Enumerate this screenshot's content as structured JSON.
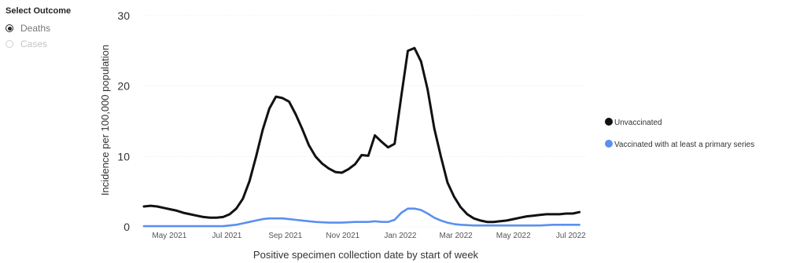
{
  "outcome_selector": {
    "title": "Select Outcome",
    "options": [
      {
        "label": "Deaths",
        "selected": true
      },
      {
        "label": "Cases",
        "selected": false
      }
    ]
  },
  "chart_data": {
    "type": "line",
    "title": "",
    "xlabel": "Positive specimen collection date by start of week",
    "ylabel": "Incidence per 100,000 population",
    "ylim": [
      0,
      30
    ],
    "yticks": [
      0,
      10,
      20,
      30
    ],
    "xlim": [
      "2021-04-04",
      "2022-07-17"
    ],
    "xticks": [
      {
        "date": "2021-05-01",
        "label": "May 2021"
      },
      {
        "date": "2021-07-01",
        "label": "Jul 2021"
      },
      {
        "date": "2021-09-01",
        "label": "Sep 2021"
      },
      {
        "date": "2021-11-01",
        "label": "Nov 2021"
      },
      {
        "date": "2022-01-01",
        "label": "Jan 2022"
      },
      {
        "date": "2022-03-01",
        "label": "Mar 2022"
      },
      {
        "date": "2022-05-01",
        "label": "May 2022"
      },
      {
        "date": "2022-07-01",
        "label": "Jul 2022"
      }
    ],
    "grid": "horizontal",
    "legend_position": "right",
    "series": [
      {
        "name": "Unvaccinated",
        "color": "#111111",
        "points": [
          [
            "2021-04-04",
            2.9
          ],
          [
            "2021-04-11",
            3.0
          ],
          [
            "2021-04-18",
            2.9
          ],
          [
            "2021-04-25",
            2.7
          ],
          [
            "2021-05-02",
            2.5
          ],
          [
            "2021-05-09",
            2.3
          ],
          [
            "2021-05-16",
            2.0
          ],
          [
            "2021-05-23",
            1.8
          ],
          [
            "2021-05-30",
            1.6
          ],
          [
            "2021-06-06",
            1.4
          ],
          [
            "2021-06-13",
            1.3
          ],
          [
            "2021-06-20",
            1.3
          ],
          [
            "2021-06-27",
            1.4
          ],
          [
            "2021-07-04",
            1.8
          ],
          [
            "2021-07-11",
            2.6
          ],
          [
            "2021-07-18",
            4.0
          ],
          [
            "2021-07-25",
            6.5
          ],
          [
            "2021-08-01",
            10.0
          ],
          [
            "2021-08-08",
            13.8
          ],
          [
            "2021-08-15",
            16.8
          ],
          [
            "2021-08-22",
            18.5
          ],
          [
            "2021-08-29",
            18.3
          ],
          [
            "2021-09-05",
            17.8
          ],
          [
            "2021-09-12",
            16.0
          ],
          [
            "2021-09-19",
            13.9
          ],
          [
            "2021-09-26",
            11.6
          ],
          [
            "2021-10-03",
            10.0
          ],
          [
            "2021-10-10",
            9.0
          ],
          [
            "2021-10-17",
            8.3
          ],
          [
            "2021-10-24",
            7.8
          ],
          [
            "2021-10-31",
            7.7
          ],
          [
            "2021-11-07",
            8.2
          ],
          [
            "2021-11-14",
            8.9
          ],
          [
            "2021-11-21",
            10.2
          ],
          [
            "2021-11-28",
            10.1
          ],
          [
            "2021-12-05",
            13.0
          ],
          [
            "2021-12-12",
            12.1
          ],
          [
            "2021-12-19",
            11.3
          ],
          [
            "2021-12-26",
            11.8
          ],
          [
            "2022-01-02",
            18.5
          ],
          [
            "2022-01-09",
            25.0
          ],
          [
            "2022-01-16",
            25.4
          ],
          [
            "2022-01-23",
            23.5
          ],
          [
            "2022-01-30",
            19.5
          ],
          [
            "2022-02-06",
            14.0
          ],
          [
            "2022-02-13",
            10.0
          ],
          [
            "2022-02-20",
            6.3
          ],
          [
            "2022-02-27",
            4.3
          ],
          [
            "2022-03-06",
            2.8
          ],
          [
            "2022-03-13",
            1.8
          ],
          [
            "2022-03-20",
            1.2
          ],
          [
            "2022-03-27",
            0.9
          ],
          [
            "2022-04-03",
            0.7
          ],
          [
            "2022-04-10",
            0.7
          ],
          [
            "2022-04-17",
            0.8
          ],
          [
            "2022-04-24",
            0.9
          ],
          [
            "2022-05-01",
            1.1
          ],
          [
            "2022-05-08",
            1.3
          ],
          [
            "2022-05-15",
            1.5
          ],
          [
            "2022-05-22",
            1.6
          ],
          [
            "2022-05-29",
            1.7
          ],
          [
            "2022-06-05",
            1.8
          ],
          [
            "2022-06-12",
            1.8
          ],
          [
            "2022-06-19",
            1.8
          ],
          [
            "2022-06-26",
            1.9
          ],
          [
            "2022-07-03",
            1.9
          ],
          [
            "2022-07-10",
            2.1
          ]
        ]
      },
      {
        "name": "Vaccinated with at least a primary series",
        "color": "#5B8FF0",
        "points": [
          [
            "2021-04-04",
            0.1
          ],
          [
            "2021-04-18",
            0.1
          ],
          [
            "2021-05-02",
            0.1
          ],
          [
            "2021-05-16",
            0.1
          ],
          [
            "2021-05-30",
            0.1
          ],
          [
            "2021-06-13",
            0.1
          ],
          [
            "2021-06-27",
            0.1
          ],
          [
            "2021-07-04",
            0.2
          ],
          [
            "2021-07-11",
            0.3
          ],
          [
            "2021-07-18",
            0.5
          ],
          [
            "2021-07-25",
            0.7
          ],
          [
            "2021-08-01",
            0.9
          ],
          [
            "2021-08-08",
            1.1
          ],
          [
            "2021-08-15",
            1.2
          ],
          [
            "2021-08-22",
            1.2
          ],
          [
            "2021-08-29",
            1.2
          ],
          [
            "2021-09-05",
            1.1
          ],
          [
            "2021-09-12",
            1.0
          ],
          [
            "2021-09-19",
            0.9
          ],
          [
            "2021-09-26",
            0.8
          ],
          [
            "2021-10-03",
            0.7
          ],
          [
            "2021-10-17",
            0.6
          ],
          [
            "2021-10-31",
            0.6
          ],
          [
            "2021-11-14",
            0.7
          ],
          [
            "2021-11-28",
            0.7
          ],
          [
            "2021-12-05",
            0.8
          ],
          [
            "2021-12-12",
            0.7
          ],
          [
            "2021-12-19",
            0.7
          ],
          [
            "2021-12-26",
            1.0
          ],
          [
            "2022-01-02",
            2.0
          ],
          [
            "2022-01-09",
            2.6
          ],
          [
            "2022-01-16",
            2.6
          ],
          [
            "2022-01-23",
            2.4
          ],
          [
            "2022-01-30",
            1.9
          ],
          [
            "2022-02-06",
            1.3
          ],
          [
            "2022-02-13",
            0.9
          ],
          [
            "2022-02-20",
            0.6
          ],
          [
            "2022-02-27",
            0.4
          ],
          [
            "2022-03-06",
            0.3
          ],
          [
            "2022-03-20",
            0.2
          ],
          [
            "2022-04-03",
            0.2
          ],
          [
            "2022-04-17",
            0.2
          ],
          [
            "2022-05-01",
            0.2
          ],
          [
            "2022-05-15",
            0.2
          ],
          [
            "2022-05-29",
            0.2
          ],
          [
            "2022-06-12",
            0.3
          ],
          [
            "2022-06-26",
            0.3
          ],
          [
            "2022-07-10",
            0.3
          ]
        ]
      }
    ]
  }
}
